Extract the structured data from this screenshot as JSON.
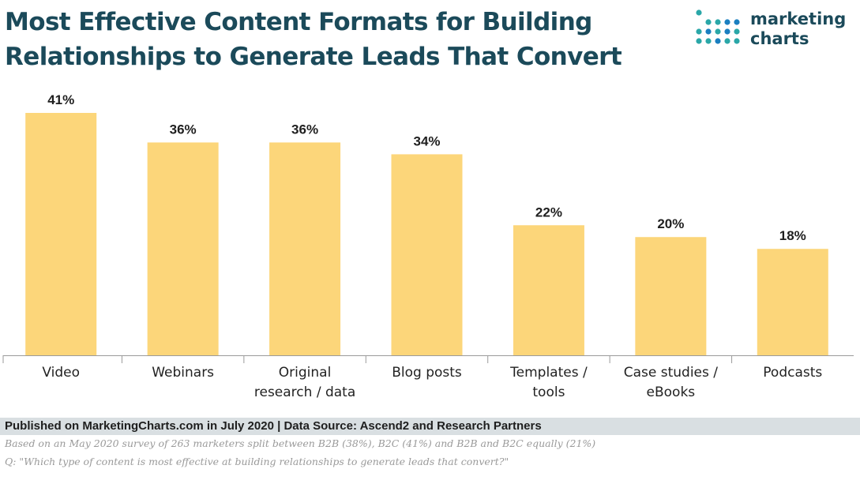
{
  "header": {
    "title_line1": "Most Effective Content Formats for Building",
    "title_line2": "Relationships to Generate Leads That Convert"
  },
  "brand": {
    "line1": "marketing",
    "line2": "charts"
  },
  "chart_data": {
    "type": "bar",
    "title": "Most Effective Content Formats for Building Relationships to Generate Leads That Convert",
    "categories": [
      [
        "Video"
      ],
      [
        "Webinars"
      ],
      [
        "Original",
        "research / data"
      ],
      [
        "Blog posts"
      ],
      [
        "Templates /",
        "tools"
      ],
      [
        "Case studies /",
        "eBooks"
      ],
      [
        "Podcasts"
      ]
    ],
    "values": [
      41,
      36,
      36,
      34,
      22,
      20,
      18
    ],
    "value_labels": [
      "41%",
      "36%",
      "36%",
      "34%",
      "22%",
      "20%",
      "18%"
    ],
    "unit": "%",
    "xlabel": "",
    "ylabel": "",
    "ylim": [
      0,
      41
    ],
    "grid": false,
    "bar_color": "#fcd67a"
  },
  "footer": {
    "published": "Published on MarketingCharts.com in July 2020 | Data Source: Ascend2 and Research Partners",
    "note1": "Based on an May 2020 survey of 263 marketers split between B2B (38%), B2C (41%) and B2B and B2C equally (21%)",
    "note2": "Q: \"Which type of content is most effective at building relationships to generate leads that convert?\""
  },
  "colors": {
    "title": "#1b4a5a",
    "bar": "#fcd67a",
    "axis": "#9a9a9a",
    "footer_band": "#d9dfe2",
    "logo_teal": "#2aa7a8",
    "logo_blue": "#1a7fc0"
  }
}
